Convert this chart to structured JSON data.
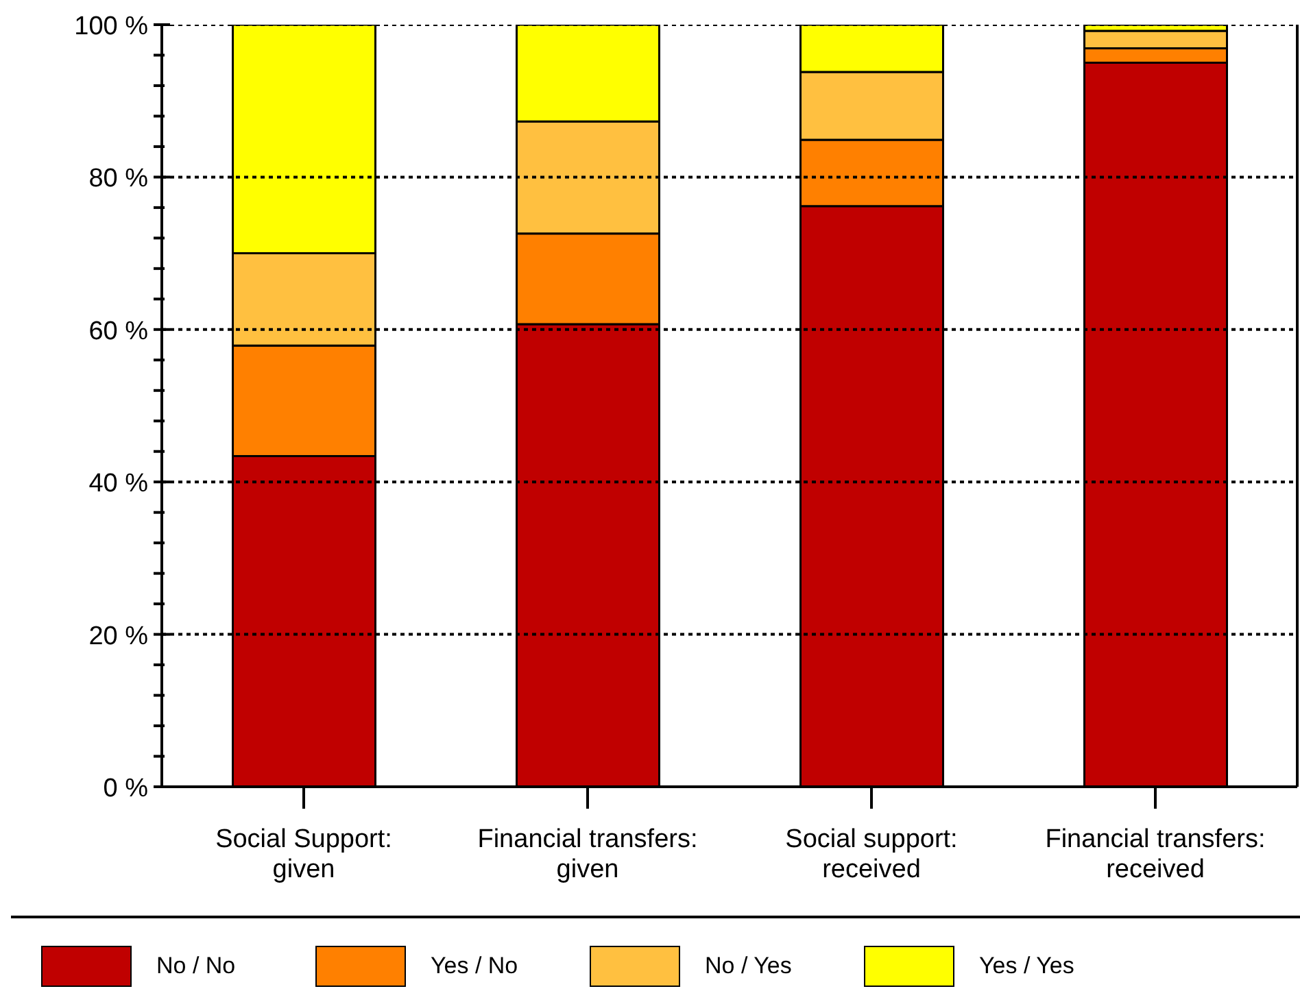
{
  "chart_data": {
    "type": "bar",
    "stacked": true,
    "categories": [
      "Social Support:\ngiven",
      "Financial transfers:\ngiven",
      "Social support:\nreceived",
      "Financial transfers:\nreceived"
    ],
    "series": [
      {
        "name": "No / No",
        "color": "#c00000",
        "values": [
          43.4,
          60.7,
          76.2,
          95.0
        ]
      },
      {
        "name": "Yes / No",
        "color": "#ff8000",
        "values": [
          14.5,
          11.9,
          8.7,
          1.9
        ]
      },
      {
        "name": "No / Yes",
        "color": "#ffc040",
        "values": [
          12.1,
          14.7,
          8.9,
          2.3
        ]
      },
      {
        "name": "Yes / Yes",
        "color": "#ffff00",
        "values": [
          30.0,
          12.7,
          6.2,
          0.8
        ]
      }
    ],
    "ylim": [
      0,
      100
    ],
    "yticks": [
      {
        "value": 0,
        "label": "0 %"
      },
      {
        "value": 4,
        "label": null
      },
      {
        "value": 8,
        "label": null
      },
      {
        "value": 12,
        "label": null
      },
      {
        "value": 16,
        "label": null
      },
      {
        "value": 20,
        "label": "20 %"
      },
      {
        "value": 24,
        "label": null
      },
      {
        "value": 28,
        "label": null
      },
      {
        "value": 32,
        "label": null
      },
      {
        "value": 36,
        "label": null
      },
      {
        "value": 40,
        "label": "40 %"
      },
      {
        "value": 44,
        "label": null
      },
      {
        "value": 48,
        "label": null
      },
      {
        "value": 52,
        "label": null
      },
      {
        "value": 56,
        "label": null
      },
      {
        "value": 60,
        "label": "60 %"
      },
      {
        "value": 64,
        "label": null
      },
      {
        "value": 68,
        "label": null
      },
      {
        "value": 72,
        "label": null
      },
      {
        "value": 76,
        "label": null
      },
      {
        "value": 80,
        "label": "80 %"
      },
      {
        "value": 84,
        "label": null
      },
      {
        "value": 88,
        "label": null
      },
      {
        "value": 92,
        "label": null
      },
      {
        "value": 96,
        "label": null
      },
      {
        "value": 100,
        "label": "100 %"
      }
    ],
    "grid": "y",
    "legend": "bottom"
  }
}
